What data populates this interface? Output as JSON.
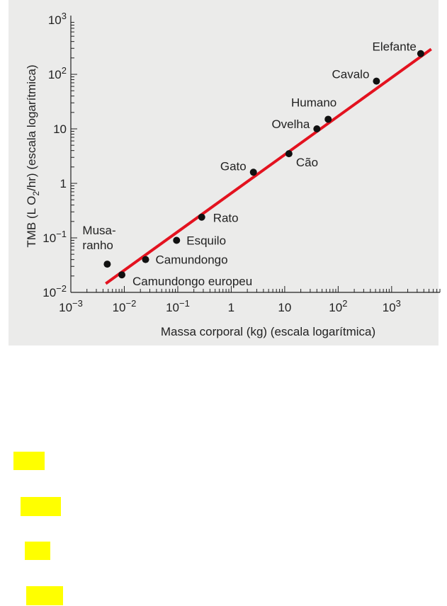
{
  "chart_data": {
    "type": "scatter",
    "xlabel": "Massa corporal (kg) (escala logarítmica)",
    "ylabel": "TMB (L O2/hr) (escala logarítmica)",
    "x_scale": "log",
    "y_scale": "log",
    "xlim": [
      0.001,
      8000
    ],
    "ylim": [
      0.01,
      1000
    ],
    "x_ticks": [
      {
        "value": 0.001,
        "base": "10",
        "exp": "−3"
      },
      {
        "value": 0.01,
        "base": "10",
        "exp": "−2"
      },
      {
        "value": 0.1,
        "base": "10",
        "exp": "−1"
      },
      {
        "value": 1,
        "base": "1",
        "exp": ""
      },
      {
        "value": 10,
        "base": "10",
        "exp": ""
      },
      {
        "value": 100,
        "base": "10",
        "exp": "2"
      },
      {
        "value": 1000,
        "base": "10",
        "exp": "3"
      }
    ],
    "y_ticks": [
      {
        "value": 0.01,
        "base": "10",
        "exp": "−2"
      },
      {
        "value": 0.1,
        "base": "10",
        "exp": "−1"
      },
      {
        "value": 1,
        "base": "1",
        "exp": ""
      },
      {
        "value": 10,
        "base": "10",
        "exp": ""
      },
      {
        "value": 100,
        "base": "10",
        "exp": "2"
      },
      {
        "value": 1000,
        "base": "10",
        "exp": "3"
      }
    ],
    "points": [
      {
        "label": "Musa-\nranho",
        "x": 0.0048,
        "y": 0.033
      },
      {
        "label": "Camundongo europeu",
        "x": 0.009,
        "y": 0.021
      },
      {
        "label": "Camundongo",
        "x": 0.025,
        "y": 0.04
      },
      {
        "label": "Esquilo",
        "x": 0.095,
        "y": 0.09
      },
      {
        "label": "Rato",
        "x": 0.28,
        "y": 0.24
      },
      {
        "label": "Gato",
        "x": 2.6,
        "y": 1.6
      },
      {
        "label": "Cão",
        "x": 12,
        "y": 3.5
      },
      {
        "label": "Ovelha",
        "x": 40,
        "y": 10
      },
      {
        "label": "Humano",
        "x": 65,
        "y": 15
      },
      {
        "label": "Cavalo",
        "x": 520,
        "y": 75
      },
      {
        "label": "Elefante",
        "x": 3500,
        "y": 240
      }
    ],
    "trend_line": {
      "x": [
        0.0045,
        5500
      ],
      "y": [
        0.0145,
        290
      ],
      "color": "#e3121f"
    },
    "point_color": "#111111",
    "grid": false,
    "background": "#ebebea"
  },
  "highlights": {
    "color": "#ffff00",
    "count": 4
  }
}
